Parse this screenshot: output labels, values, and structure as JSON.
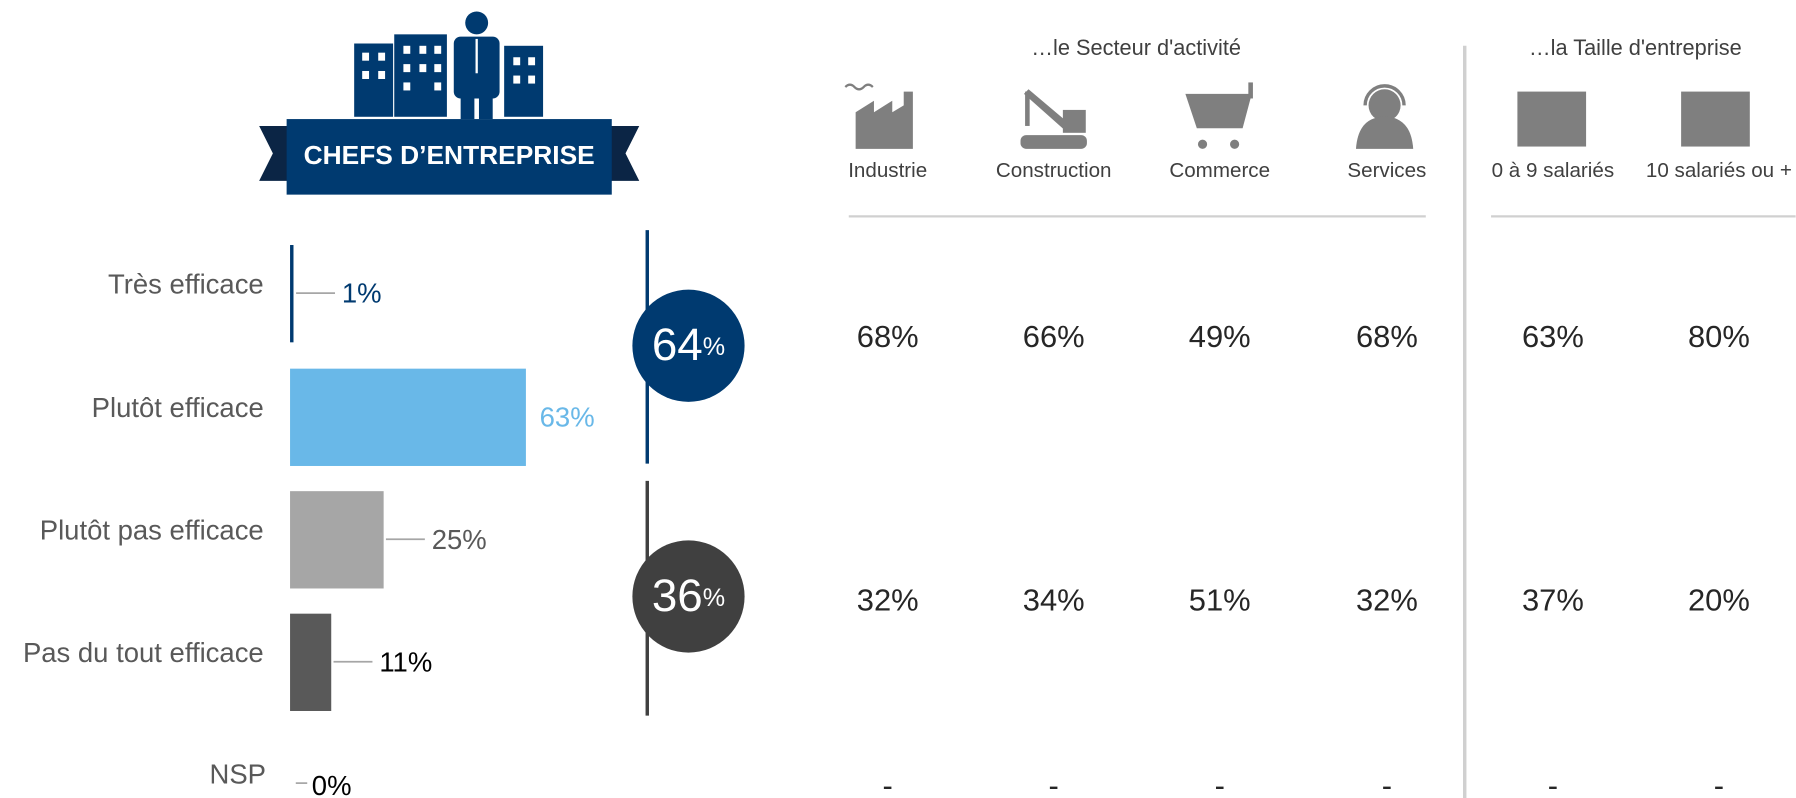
{
  "chart_data": {
    "type": "bar",
    "title": "CHEFS D’ENTREPRISE",
    "categories": [
      "Très efficace",
      "Plutôt efficace",
      "Plutôt pas efficace",
      "Pas du tout efficace",
      "NSP"
    ],
    "values": [
      1,
      63,
      25,
      11,
      0
    ],
    "value_labels": [
      "1%",
      "63%",
      "25%",
      "11%",
      "0%"
    ],
    "colors": [
      "#003a70",
      "#69b8e8",
      "#a6a6a6",
      "#595959",
      "#595959"
    ],
    "label_colors": [
      "#003a70",
      "#69b8e8",
      "#595959",
      "#000000",
      "#000000"
    ],
    "totals": [
      {
        "value": 64,
        "label": "64%",
        "color": "#003a70"
      },
      {
        "value": 36,
        "label": "36%",
        "color": "#404040"
      }
    ]
  },
  "table": {
    "groups": [
      {
        "title": "…le Secteur d'activité",
        "columns": [
          "Industrie",
          "Construction",
          "Commerce",
          "Services"
        ]
      },
      {
        "title": "…la Taille d'entreprise",
        "columns": [
          "0 à 9 salariés",
          "10 salariés ou +"
        ]
      }
    ],
    "rows": [
      [
        "68%",
        "66%",
        "49%",
        "68%",
        "63%",
        "80%"
      ],
      [
        "32%",
        "34%",
        "51%",
        "32%",
        "37%",
        "20%"
      ],
      [
        "-",
        "-",
        "-",
        "-",
        "-",
        "-"
      ]
    ]
  }
}
